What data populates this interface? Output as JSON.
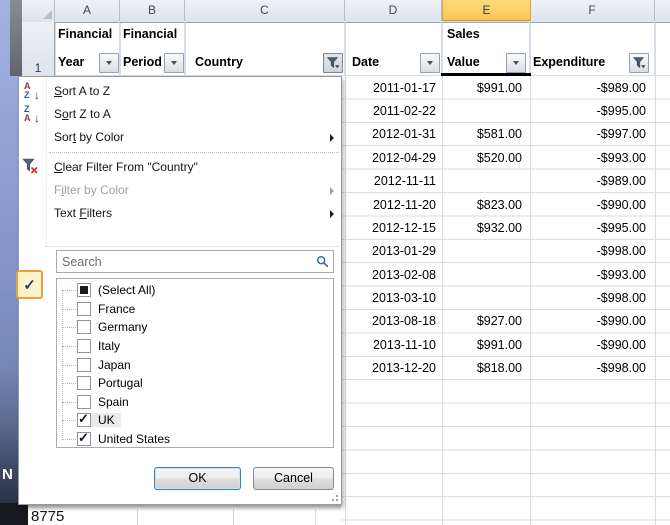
{
  "sheet": {
    "col_letters": {
      "a": "A",
      "b": "B",
      "c": "C",
      "d": "D",
      "e": "E",
      "f": "F"
    },
    "row1_number": "1",
    "headers": {
      "a1": "Financial",
      "a2": "Year",
      "b1": "Financial",
      "b2": "Period",
      "c": "Country",
      "d": "Date",
      "e1": "Sales",
      "e2": "Value",
      "f": "Expenditure"
    },
    "rows": [
      {
        "date": "2011-01-17",
        "sales": "$991.00",
        "expenditure": "-$989.00"
      },
      {
        "date": "2011-02-22",
        "sales": "",
        "expenditure": "-$995.00"
      },
      {
        "date": "2012-01-31",
        "sales": "$581.00",
        "expenditure": "-$997.00"
      },
      {
        "date": "2012-04-29",
        "sales": "$520.00",
        "expenditure": "-$993.00"
      },
      {
        "date": "2012-11-11",
        "sales": "",
        "expenditure": "-$989.00"
      },
      {
        "date": "2012-11-20",
        "sales": "$823.00",
        "expenditure": "-$990.00"
      },
      {
        "date": "2012-12-15",
        "sales": "$932.00",
        "expenditure": "-$995.00"
      },
      {
        "date": "2013-01-29",
        "sales": "",
        "expenditure": "-$998.00"
      },
      {
        "date": "2013-02-08",
        "sales": "",
        "expenditure": "-$993.00"
      },
      {
        "date": "2013-03-10",
        "sales": "",
        "expenditure": "-$998.00"
      },
      {
        "date": "2013-08-18",
        "sales": "$927.00",
        "expenditure": "-$990.00"
      },
      {
        "date": "2013-11-10",
        "sales": "$991.00",
        "expenditure": "-$990.00"
      },
      {
        "date": "2013-12-20",
        "sales": "$818.00",
        "expenditure": "-$998.00"
      }
    ],
    "background_cell": "8775"
  },
  "menu": {
    "items": [
      {
        "pre": "",
        "key": "S",
        "post": "ort A to Z",
        "icon": "sort-az",
        "submenu": false,
        "disabled": false,
        "sep_after": false
      },
      {
        "pre": "S",
        "key": "o",
        "post": "rt Z to A",
        "icon": "sort-za",
        "submenu": false,
        "disabled": false,
        "sep_after": false
      },
      {
        "pre": "Sor",
        "key": "t",
        "post": " by Color",
        "icon": "",
        "submenu": true,
        "disabled": false,
        "sep_after": true
      },
      {
        "pre": "",
        "key": "C",
        "post": "lear Filter From \"Country\"",
        "icon": "clear-filter",
        "submenu": false,
        "disabled": false,
        "sep_after": false
      },
      {
        "pre": "F",
        "key": "i",
        "post": "lter by Color",
        "icon": "",
        "submenu": true,
        "disabled": true,
        "sep_after": false
      },
      {
        "pre": "Text ",
        "key": "F",
        "post": "ilters",
        "icon": "",
        "submenu": true,
        "disabled": false,
        "sep_after": false
      }
    ],
    "search_placeholder": "Search",
    "list": [
      {
        "label": "(Select All)",
        "state": "indeterminate",
        "hot": false
      },
      {
        "label": "France",
        "state": "unchecked",
        "hot": false
      },
      {
        "label": "Germany",
        "state": "unchecked",
        "hot": false
      },
      {
        "label": "Italy",
        "state": "unchecked",
        "hot": false
      },
      {
        "label": "Japan",
        "state": "unchecked",
        "hot": false
      },
      {
        "label": "Portugal",
        "state": "unchecked",
        "hot": false
      },
      {
        "label": "Spain",
        "state": "unchecked",
        "hot": false
      },
      {
        "label": "UK",
        "state": "checked",
        "hot": true
      },
      {
        "label": "United States",
        "state": "checked",
        "hot": false
      }
    ],
    "ok_label": "OK",
    "cancel_label": "Cancel"
  },
  "desktop": {
    "icon_letter": "N"
  },
  "colors": {
    "selected_header": "#f9c554",
    "grid": "#d6dde6",
    "menu_border": "#9b9b9b",
    "active_cell_border": "#000000",
    "check_button_border": "#e9a23b"
  }
}
